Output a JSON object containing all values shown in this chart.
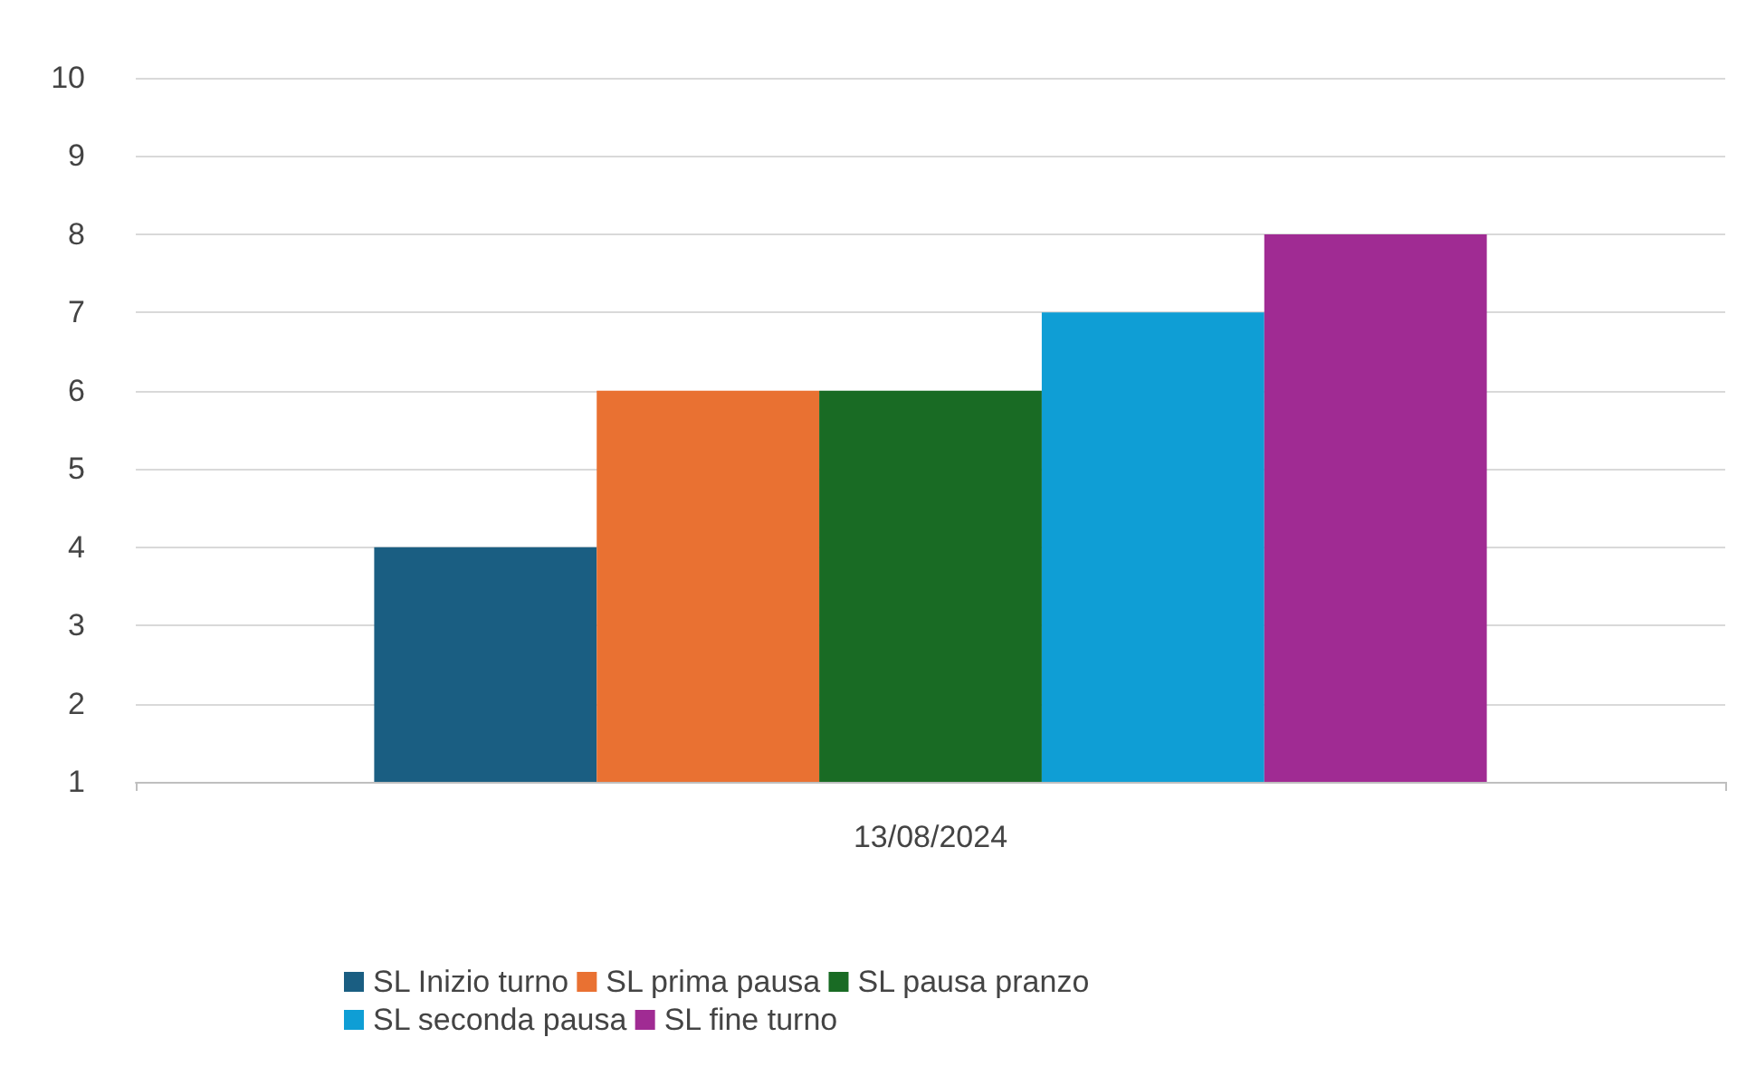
{
  "chart_data": {
    "type": "bar",
    "categories": [
      "13/08/2024"
    ],
    "series": [
      {
        "name": "SL Inizio turno",
        "color": "#1a5e82",
        "values": [
          4
        ]
      },
      {
        "name": "SL prima pausa",
        "color": "#e97132",
        "values": [
          6
        ]
      },
      {
        "name": "SL pausa pranzo",
        "color": "#196b24",
        "values": [
          6
        ]
      },
      {
        "name": "SL seconda pausa",
        "color": "#0f9ed5",
        "values": [
          7
        ]
      },
      {
        "name": "SL fine turno",
        "color": "#a02b93",
        "values": [
          8
        ]
      }
    ],
    "ylim": [
      1,
      10
    ],
    "yticks": [
      1,
      2,
      3,
      4,
      5,
      6,
      7,
      8,
      9,
      10
    ],
    "grid": "y",
    "legend": "bottom"
  }
}
